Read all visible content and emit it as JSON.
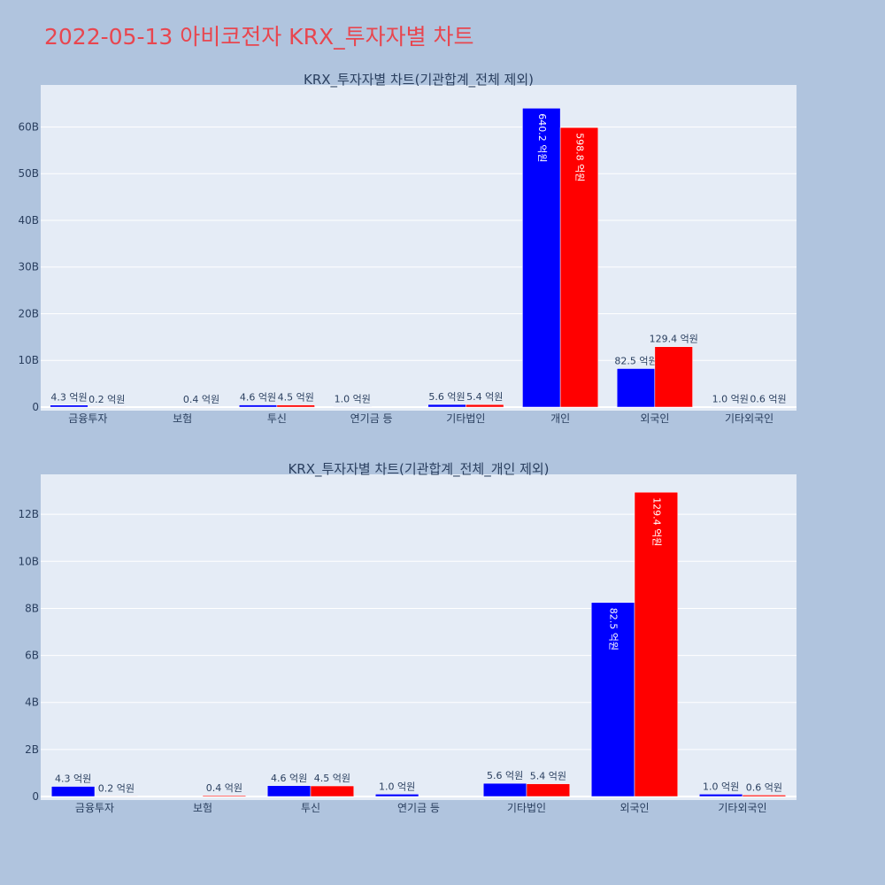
{
  "page_title": "2022-05-13 아비코전자 KRX_투자자별 차트",
  "colors": {
    "page_bg": "#b0c4de",
    "plot_bg": "#e5ecf6",
    "title": "#e8464f",
    "series_a": "#0000ff",
    "series_b": "#ff0000",
    "axis_text": "#2a3f5f"
  },
  "chart_data": [
    {
      "type": "bar",
      "title": "KRX_투자자별 차트(기관합계_전체 제외)",
      "categories": [
        "금융투자",
        "보험",
        "투신",
        "연기금 등",
        "기타법인",
        "개인",
        "외국인",
        "기타외국인"
      ],
      "series": [
        {
          "color": "#0000ff",
          "values": [
            4.3,
            0,
            4.6,
            1.0,
            5.6,
            640.2,
            82.5,
            1.0
          ],
          "labels": [
            "4.3 억원",
            "",
            "4.6 억원",
            "1.0 억원",
            "5.6 억원",
            "640.2 억원",
            "82.5 억원",
            "1.0 억원"
          ]
        },
        {
          "color": "#ff0000",
          "values": [
            0.2,
            0.4,
            4.5,
            0,
            5.4,
            598.8,
            129.4,
            0.6
          ],
          "labels": [
            "0.2 억원",
            "0.4 억원",
            "4.5 억원",
            "",
            "5.4 억원",
            "598.8 억원",
            "129.4 억원",
            "0.6 억원"
          ]
        }
      ],
      "value_unit": "억원",
      "yticks": [
        0,
        100,
        200,
        300,
        400,
        500,
        600
      ],
      "ytick_labels": [
        "0",
        "10B",
        "20B",
        "30B",
        "40B",
        "50B",
        "60B"
      ],
      "ylim": [
        0,
        690
      ],
      "grid": true
    },
    {
      "type": "bar",
      "title": "KRX_투자자별 차트(기관합계_전체_개인 제외)",
      "categories": [
        "금융투자",
        "보험",
        "투신",
        "연기금 등",
        "기타법인",
        "외국인",
        "기타외국인"
      ],
      "series": [
        {
          "color": "#0000ff",
          "values": [
            4.3,
            0,
            4.6,
            1.0,
            5.6,
            82.5,
            1.0
          ],
          "labels": [
            "4.3 억원",
            "",
            "4.6 억원",
            "1.0 억원",
            "5.6 억원",
            "82.5 억원",
            "1.0 억원"
          ]
        },
        {
          "color": "#ff0000",
          "values": [
            0.2,
            0.4,
            4.5,
            0,
            5.4,
            129.4,
            0.6
          ],
          "labels": [
            "0.2 억원",
            "0.4 억원",
            "4.5 억원",
            "",
            "5.4 억원",
            "129.4 억원",
            "0.6 억원"
          ]
        }
      ],
      "value_unit": "억원",
      "yticks": [
        0,
        20,
        40,
        60,
        80,
        100,
        120
      ],
      "ytick_labels": [
        "0",
        "2B",
        "4B",
        "6B",
        "8B",
        "10B",
        "12B"
      ],
      "ylim": [
        0,
        137
      ],
      "grid": true
    }
  ]
}
